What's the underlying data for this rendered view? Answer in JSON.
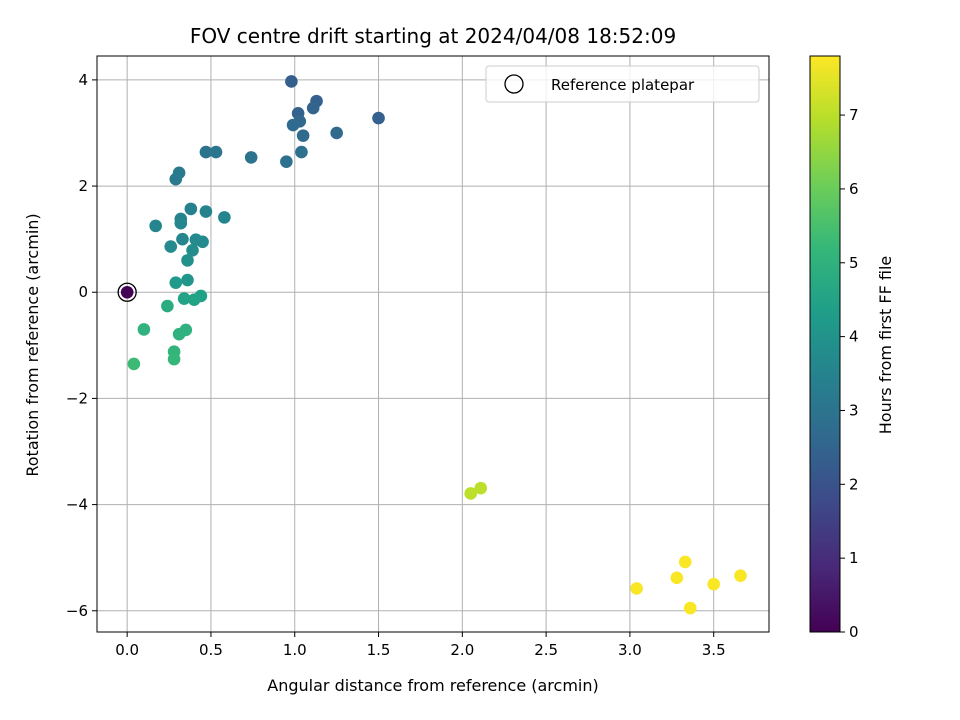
{
  "chart_data": {
    "type": "scatter",
    "title": "FOV centre drift starting at 2024/04/08 18:52:09",
    "xlabel": "Angular distance from reference (arcmin)",
    "ylabel": "Rotation from reference (arcmin)",
    "xlim": [
      -0.18,
      3.83
    ],
    "ylim": [
      -6.4,
      4.45
    ],
    "xticks": [
      0.0,
      0.5,
      1.0,
      1.5,
      2.0,
      2.5,
      3.0,
      3.5
    ],
    "xtick_labels": [
      "0.0",
      "0.5",
      "1.0",
      "1.5",
      "2.0",
      "2.5",
      "3.0",
      "3.5"
    ],
    "yticks": [
      -6,
      -4,
      -2,
      0,
      2,
      4
    ],
    "ytick_labels": [
      "−6",
      "−4",
      "−2",
      "0",
      "2",
      "4"
    ],
    "grid": true,
    "legend": {
      "position": "top-right",
      "entries": [
        {
          "label": "Reference platepar",
          "marker": "open-circle"
        }
      ]
    },
    "colorbar": {
      "label": "Hours from first FF file",
      "colormap": "viridis",
      "range": [
        0,
        7.8
      ],
      "ticks": [
        0,
        1,
        2,
        3,
        4,
        5,
        6,
        7
      ],
      "tick_labels": [
        "0",
        "1",
        "2",
        "3",
        "4",
        "5",
        "6",
        "7"
      ],
      "stops": [
        "#440154",
        "#482878",
        "#3e4989",
        "#31688e",
        "#26828e",
        "#1f9e89",
        "#35b779",
        "#6ece58",
        "#b5de2b",
        "#fde725"
      ]
    },
    "reference_point": {
      "x": 0.0,
      "y": 0.0,
      "hours": 0.0
    },
    "points": [
      {
        "x": 0.0,
        "y": 0.0,
        "hours": 0.05
      },
      {
        "x": 0.98,
        "y": 3.97,
        "hours": 2.35
      },
      {
        "x": 1.13,
        "y": 3.6,
        "hours": 2.4
      },
      {
        "x": 1.11,
        "y": 3.47,
        "hours": 2.5
      },
      {
        "x": 1.02,
        "y": 3.37,
        "hours": 2.45
      },
      {
        "x": 1.5,
        "y": 3.28,
        "hours": 2.4
      },
      {
        "x": 1.03,
        "y": 3.22,
        "hours": 2.6
      },
      {
        "x": 0.99,
        "y": 3.15,
        "hours": 2.65
      },
      {
        "x": 1.25,
        "y": 3.0,
        "hours": 2.7
      },
      {
        "x": 1.05,
        "y": 2.95,
        "hours": 2.7
      },
      {
        "x": 0.47,
        "y": 2.64,
        "hours": 3.0
      },
      {
        "x": 0.53,
        "y": 2.64,
        "hours": 3.05
      },
      {
        "x": 1.04,
        "y": 2.64,
        "hours": 2.9
      },
      {
        "x": 0.74,
        "y": 2.54,
        "hours": 3.0
      },
      {
        "x": 0.95,
        "y": 2.46,
        "hours": 2.9
      },
      {
        "x": 0.31,
        "y": 2.25,
        "hours": 3.2
      },
      {
        "x": 0.29,
        "y": 2.13,
        "hours": 3.2
      },
      {
        "x": 0.38,
        "y": 1.57,
        "hours": 3.4
      },
      {
        "x": 0.47,
        "y": 1.52,
        "hours": 3.5
      },
      {
        "x": 0.58,
        "y": 1.41,
        "hours": 3.55
      },
      {
        "x": 0.32,
        "y": 1.38,
        "hours": 3.5
      },
      {
        "x": 0.32,
        "y": 1.3,
        "hours": 3.6
      },
      {
        "x": 0.17,
        "y": 1.25,
        "hours": 3.55
      },
      {
        "x": 0.33,
        "y": 1.0,
        "hours": 3.6
      },
      {
        "x": 0.41,
        "y": 0.99,
        "hours": 3.7
      },
      {
        "x": 0.45,
        "y": 0.95,
        "hours": 3.7
      },
      {
        "x": 0.26,
        "y": 0.86,
        "hours": 3.7
      },
      {
        "x": 0.39,
        "y": 0.79,
        "hours": 3.8
      },
      {
        "x": 0.36,
        "y": 0.6,
        "hours": 3.9
      },
      {
        "x": 0.36,
        "y": 0.23,
        "hours": 4.1
      },
      {
        "x": 0.29,
        "y": 0.18,
        "hours": 4.2
      },
      {
        "x": 0.44,
        "y": -0.07,
        "hours": 4.4
      },
      {
        "x": 0.34,
        "y": -0.12,
        "hours": 4.5
      },
      {
        "x": 0.4,
        "y": -0.14,
        "hours": 4.5
      },
      {
        "x": 0.24,
        "y": -0.26,
        "hours": 4.8
      },
      {
        "x": 0.1,
        "y": -0.7,
        "hours": 5.0
      },
      {
        "x": 0.35,
        "y": -0.71,
        "hours": 5.0
      },
      {
        "x": 0.31,
        "y": -0.79,
        "hours": 5.0
      },
      {
        "x": 0.28,
        "y": -1.12,
        "hours": 5.1
      },
      {
        "x": 0.28,
        "y": -1.26,
        "hours": 5.2
      },
      {
        "x": 0.04,
        "y": -1.35,
        "hours": 5.3
      },
      {
        "x": 2.11,
        "y": -3.69,
        "hours": 7.0
      },
      {
        "x": 2.05,
        "y": -3.79,
        "hours": 7.0
      },
      {
        "x": 3.33,
        "y": -5.08,
        "hours": 7.75
      },
      {
        "x": 3.66,
        "y": -5.34,
        "hours": 7.75
      },
      {
        "x": 3.28,
        "y": -5.38,
        "hours": 7.75
      },
      {
        "x": 3.5,
        "y": -5.5,
        "hours": 7.75
      },
      {
        "x": 3.04,
        "y": -5.58,
        "hours": 7.75
      },
      {
        "x": 3.36,
        "y": -5.95,
        "hours": 7.75
      }
    ]
  }
}
